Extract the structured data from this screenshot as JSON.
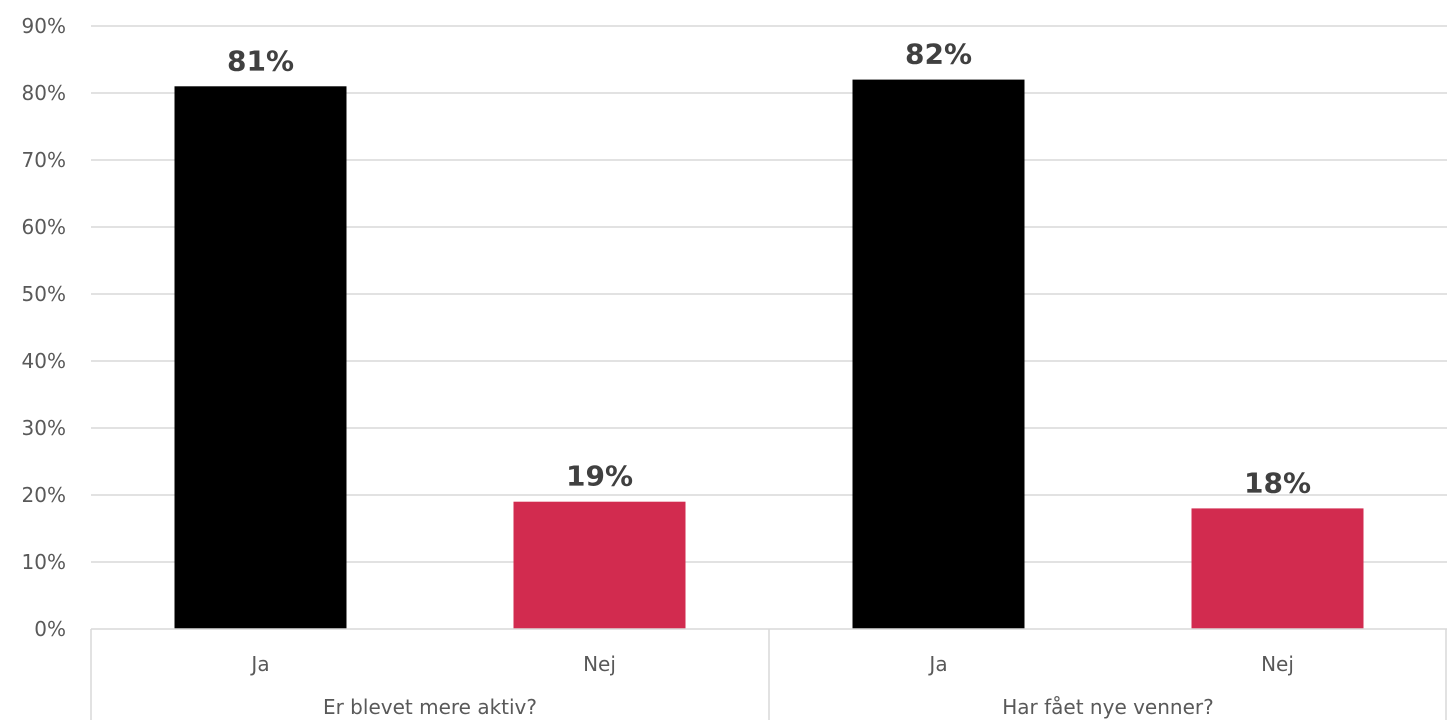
{
  "chart_data": {
    "type": "bar",
    "groups": [
      {
        "label": "Er blevet mere aktiv?",
        "categories": [
          "Ja",
          "Nej"
        ],
        "values": [
          81,
          19
        ],
        "labels": [
          "81%",
          "19%"
        ]
      },
      {
        "label": "Har fået nye venner?",
        "categories": [
          "Ja",
          "Nej"
        ],
        "values": [
          82,
          18
        ],
        "labels": [
          "82%",
          "18%"
        ]
      }
    ],
    "bar_colors": {
      "Ja": "#000000",
      "Nej": "#d22b4f"
    },
    "ylim": [
      0,
      90
    ],
    "yticks": [
      "0%",
      "10%",
      "20%",
      "30%",
      "40%",
      "50%",
      "60%",
      "70%",
      "80%",
      "90%"
    ],
    "grid": true,
    "legend": "none"
  }
}
